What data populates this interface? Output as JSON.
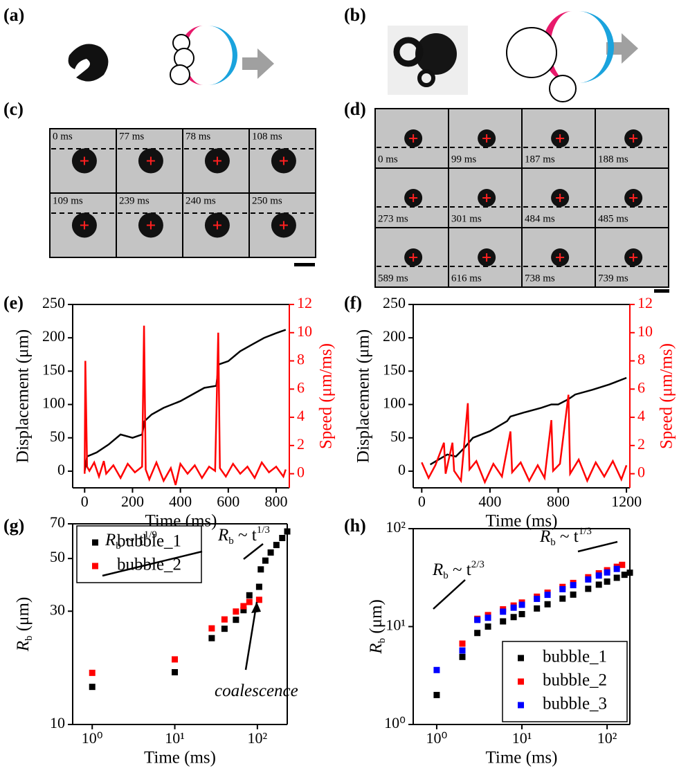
{
  "panels": {
    "labels": [
      "(a)",
      "(b)",
      "(c)",
      "(d)",
      "(e)",
      "(f)",
      "(g)",
      "(h)"
    ],
    "c_frames": [
      "0 ms",
      "77 ms",
      "78 ms",
      "108 ms",
      "109 ms",
      "239 ms",
      "240 ms",
      "250 ms"
    ],
    "d_frames": [
      "0 ms",
      "99 ms",
      "187 ms",
      "188 ms",
      "273 ms",
      "301 ms",
      "484 ms",
      "485 ms",
      "589 ms",
      "616 ms",
      "738 ms",
      "739 ms"
    ]
  },
  "chart_data": [
    {
      "type": "line",
      "xlabel": "Time (ms)",
      "ylabel": "Displacement (μm)",
      "y2label": "Speed (μm/ms)",
      "xlim": [
        -50,
        855
      ],
      "xticks": [
        0,
        200,
        400,
        600,
        800
      ],
      "ylim": [
        -25,
        250
      ],
      "yticks": [
        0,
        50,
        100,
        150,
        200,
        250
      ],
      "y2lim": [
        -1,
        12
      ],
      "y2ticks": [
        0,
        2,
        4,
        6,
        8,
        10,
        12
      ],
      "series": [
        {
          "color": "#000000",
          "x": [
            0,
            10,
            50,
            100,
            150,
            200,
            240,
            250,
            280,
            330,
            400,
            450,
            500,
            550,
            560,
            600,
            650,
            700,
            750,
            800,
            840
          ],
          "values": [
            0,
            22,
            28,
            40,
            55,
            50,
            55,
            75,
            85,
            95,
            105,
            115,
            125,
            128,
            160,
            165,
            180,
            190,
            200,
            207,
            212
          ]
        },
        {
          "color": "#ff0000",
          "axis": "y2",
          "x": [
            0,
            3,
            10,
            20,
            40,
            60,
            80,
            90,
            120,
            150,
            180,
            210,
            240,
            248,
            255,
            270,
            300,
            330,
            360,
            380,
            400,
            430,
            460,
            490,
            520,
            545,
            558,
            565,
            590,
            620,
            650,
            680,
            710,
            740,
            770,
            800,
            830,
            840
          ],
          "values": [
            0,
            8,
            0.5,
            0.2,
            0.8,
            -0.2,
            0.9,
            0,
            0.6,
            -0.3,
            0.7,
            0.1,
            0.5,
            10.5,
            0.3,
            -0.4,
            0.8,
            -0.5,
            0.4,
            -0.8,
            0.7,
            0,
            0.6,
            -0.3,
            0.5,
            0.2,
            10,
            0.4,
            -0.2,
            0.7,
            0,
            0.5,
            -0.3,
            0.8,
            0.1,
            0.5,
            -0.2,
            0.3
          ]
        }
      ]
    },
    {
      "type": "line",
      "xlabel": "Time (ms)",
      "ylabel": "Displacement (μm)",
      "y2label": "Speed (μm/ms)",
      "xlim": [
        -50,
        1220
      ],
      "xticks": [
        0,
        400,
        800,
        1200
      ],
      "ylim": [
        -25,
        250
      ],
      "yticks": [
        0,
        50,
        100,
        150,
        200,
        250
      ],
      "y2lim": [
        -1,
        12
      ],
      "y2ticks": [
        0,
        2,
        4,
        6,
        8,
        10,
        12
      ],
      "series": [
        {
          "color": "#000000",
          "x": [
            50,
            150,
            200,
            250,
            300,
            400,
            500,
            520,
            600,
            700,
            760,
            800,
            860,
            900,
            1000,
            1100,
            1200
          ],
          "values": [
            10,
            25,
            22,
            35,
            50,
            60,
            75,
            82,
            88,
            95,
            100,
            100,
            108,
            115,
            122,
            130,
            140
          ]
        },
        {
          "color": "#ff0000",
          "axis": "y2",
          "x": [
            0,
            40,
            80,
            130,
            140,
            180,
            190,
            230,
            270,
            280,
            320,
            370,
            420,
            470,
            520,
            530,
            580,
            630,
            680,
            720,
            760,
            770,
            810,
            860,
            870,
            920,
            970,
            1020,
            1070,
            1120,
            1170,
            1200
          ],
          "values": [
            0.8,
            -0.3,
            0.6,
            2.2,
            0,
            2.2,
            0.2,
            -0.5,
            5,
            0.3,
            0.9,
            -0.6,
            0.7,
            -0.2,
            3,
            0.1,
            0.8,
            -0.5,
            0.6,
            -0.3,
            3.8,
            0.2,
            0.7,
            5.6,
            0,
            1,
            -0.5,
            0.8,
            -0.2,
            0.9,
            -0.4,
            0.6
          ]
        }
      ]
    },
    {
      "type": "scatter",
      "xlog": true,
      "ylog": true,
      "xlabel": "Time (ms)",
      "ylabel": {
        "text": "R",
        "sub": "b",
        "after": " (μm)"
      },
      "xlim": [
        0.58,
        230
      ],
      "xticks": [
        {
          "value": 1,
          "label": "10⁰"
        },
        {
          "value": 10,
          "label": "10¹"
        },
        {
          "value": 100,
          "label": "10²"
        }
      ],
      "ylim": [
        10,
        70
      ],
      "yticks": [
        10,
        30,
        50,
        70
      ],
      "legend": "upper left",
      "series": [
        {
          "name": "bubble_1",
          "color": "#000000",
          "x": [
            1,
            10,
            28,
            40,
            55,
            68,
            80,
            105,
            110,
            125,
            145,
            170,
            200,
            230
          ],
          "values": [
            14.4,
            16.6,
            23.1,
            25.3,
            27.6,
            30.3,
            35,
            38,
            45,
            49,
            53,
            57,
            61,
            65
          ]
        },
        {
          "name": "bubble_2",
          "color": "#ff0000",
          "x": [
            1,
            10,
            28,
            40,
            55,
            68,
            80,
            105
          ],
          "values": [
            16.5,
            18.8,
            25.4,
            27.7,
            29.9,
            31.5,
            32.8,
            33.5
          ]
        }
      ],
      "annotations": [
        {
          "text": "R",
          "sub": "b",
          "after": " ~ t",
          "sup": "1/9"
        },
        {
          "text": "R",
          "sub": "b",
          "after": " ~ t",
          "sup": "1/3"
        },
        {
          "text": "coalescence"
        }
      ]
    },
    {
      "type": "scatter",
      "xlog": true,
      "ylog": true,
      "xlabel": "Time (ms)",
      "ylabel": {
        "text": "R",
        "sub": "b",
        "after": " (μm)"
      },
      "xlim": [
        0.53,
        185
      ],
      "xticks": [
        {
          "value": 1,
          "label": "10⁰"
        },
        {
          "value": 10,
          "label": "10¹"
        },
        {
          "value": 100,
          "label": "10²"
        }
      ],
      "ylim": [
        1,
        100
      ],
      "yticks": [
        {
          "value": 1,
          "label": "10⁰"
        },
        {
          "value": 10,
          "label": "10¹"
        },
        {
          "value": 100,
          "label": "10²"
        }
      ],
      "legend": "lower right",
      "series": [
        {
          "name": "bubble_1",
          "color": "#000000",
          "x": [
            1,
            2,
            3,
            4,
            6,
            8,
            10,
            15,
            20,
            30,
            40,
            60,
            80,
            100,
            130,
            160,
            185
          ],
          "values": [
            2.0,
            4.9,
            8.6,
            10,
            11.3,
            12.5,
            13.4,
            15.3,
            16.9,
            19.3,
            21.2,
            24.3,
            26.8,
            28.8,
            31.5,
            33.8,
            35.5
          ]
        },
        {
          "name": "bubble_2",
          "color": "#ff0000",
          "x": [
            2,
            3,
            4,
            6,
            8,
            10,
            15,
            20,
            30,
            40,
            60,
            80,
            100,
            130,
            150
          ],
          "values": [
            6.7,
            12,
            13.1,
            15,
            16.4,
            17.6,
            20.2,
            22.2,
            25.4,
            27.9,
            31.9,
            35,
            37.6,
            40.8,
            42.7
          ]
        },
        {
          "name": "bubble_3",
          "color": "#0000ff",
          "x": [
            1,
            2,
            3,
            4,
            6,
            8,
            10,
            15,
            20,
            30,
            40,
            60,
            80,
            100,
            130
          ],
          "values": [
            3.6,
            5.7,
            11.7,
            12.3,
            14.2,
            15.6,
            16.7,
            19.2,
            21.1,
            24.1,
            26.5,
            30.3,
            33.2,
            35.7,
            38.8
          ]
        }
      ],
      "annotations": [
        {
          "text": "R",
          "sub": "b",
          "after": " ~ t",
          "sup": "2/3"
        },
        {
          "text": "R",
          "sub": "b",
          "after": " ~ t",
          "sup": "1/3"
        }
      ]
    }
  ]
}
